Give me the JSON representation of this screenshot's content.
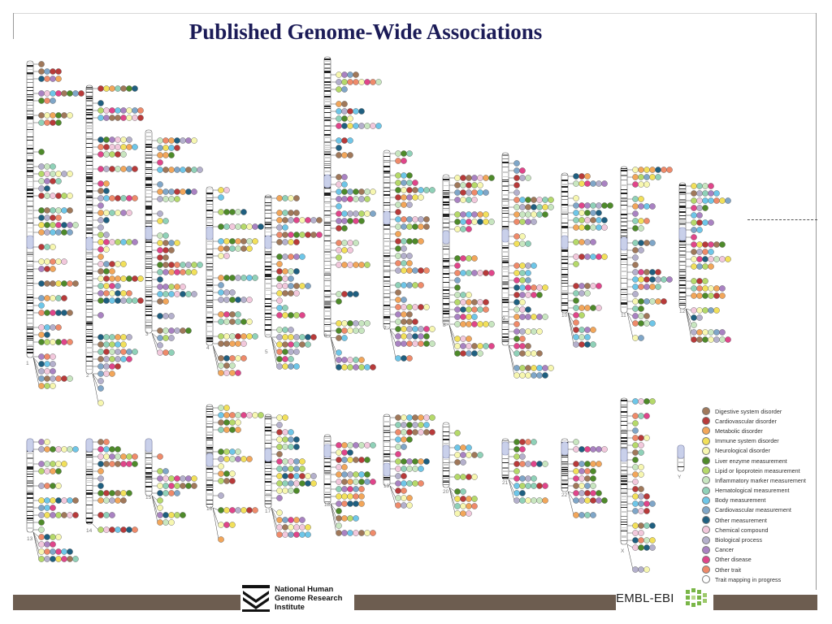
{
  "title": "Published Genome-Wide Associations",
  "chromosome_labels": [
    "1",
    "2",
    "3",
    "4",
    "5",
    "6",
    "7",
    "8",
    "9",
    "10",
    "11",
    "12",
    "13",
    "14",
    "15",
    "16",
    "17",
    "18",
    "19",
    "20",
    "21",
    "22",
    "X",
    "Y"
  ],
  "legend": [
    {
      "label": "Digestive system disorder",
      "color": "#a0785a"
    },
    {
      "label": "Cardiovascular disorder",
      "color": "#b83a3a"
    },
    {
      "label": "Metabolic disorder",
      "color": "#f2a65a"
    },
    {
      "label": "Immune system disorder",
      "color": "#f2e05a"
    },
    {
      "label": "Neurological disorder",
      "color": "#f7f7b0"
    },
    {
      "label": "Liver enzyme measurement",
      "color": "#4e8a2a"
    },
    {
      "label": "Lipid or lipoprotein measurement",
      "color": "#b5d96a"
    },
    {
      "label": "Inflammatory marker measurement",
      "color": "#c8e6c0"
    },
    {
      "label": "Hematological measurement",
      "color": "#8fd1b8"
    },
    {
      "label": "Body measurement",
      "color": "#6ec6e8"
    },
    {
      "label": "Cardiovascular measurement",
      "color": "#7fa6c8"
    },
    {
      "label": "Other measurement",
      "color": "#1f5f80"
    },
    {
      "label": "Chemical compound",
      "color": "#f2c8dc"
    },
    {
      "label": "Biological process",
      "color": "#b4b0cc"
    },
    {
      "label": "Cancer",
      "color": "#a982c2"
    },
    {
      "label": "Other disease",
      "color": "#e0458a"
    },
    {
      "label": "Other trait",
      "color": "#ef8a6a"
    },
    {
      "label": "Trait mapping in progress",
      "color": "#ffffff"
    }
  ],
  "logos": {
    "nhgri_text": [
      "National Human",
      "Genome Research",
      "Institute"
    ],
    "ebi_text": "EMBL-EBI"
  }
}
